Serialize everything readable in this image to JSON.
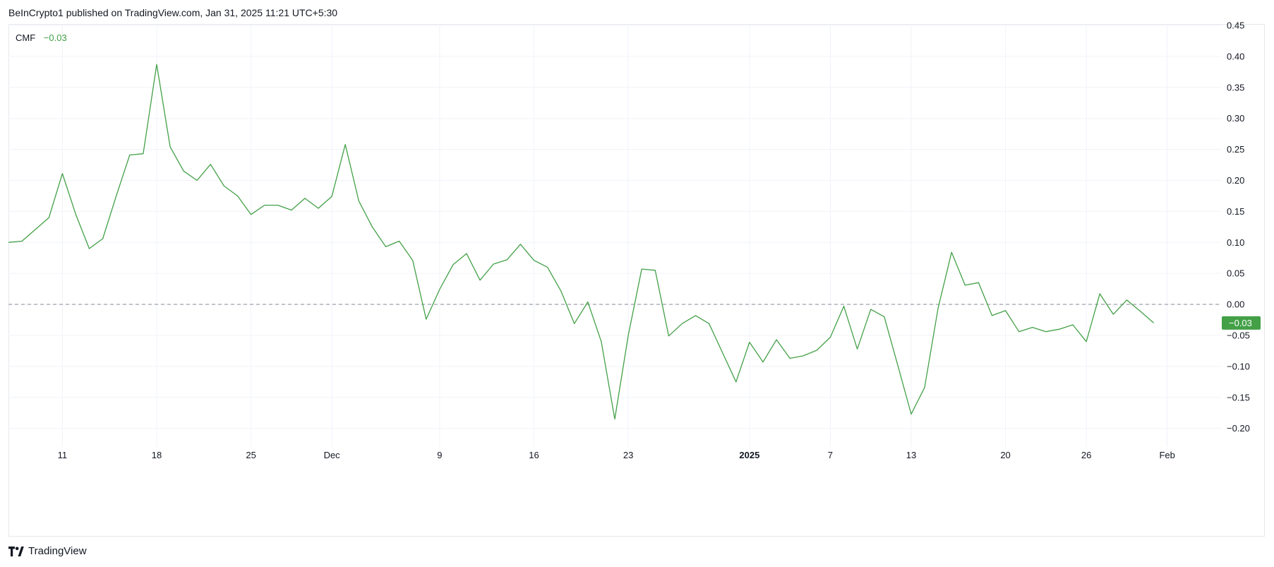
{
  "header": {
    "published_line": "BeInCrypto1 published on TradingView.com, Jan 31, 2025 11:21 UTC+5:30"
  },
  "legend": {
    "indicator_name": "CMF",
    "indicator_value": "−0.03"
  },
  "footer": {
    "logo_icon": "tradingview-logo-icon",
    "brand": "TradingView"
  },
  "colors": {
    "line": "#43a047",
    "badge": "#43a047",
    "grid": "#f0f3fa",
    "zero_line": "#9598a1",
    "axis_text": "#131722"
  },
  "chart_data": {
    "type": "line",
    "series": [
      {
        "name": "CMF",
        "x": [
          "2024-11-07",
          "2024-11-08",
          "2024-11-10",
          "2024-11-11",
          "2024-11-12",
          "2024-11-13",
          "2024-11-14",
          "2024-11-15",
          "2024-11-16",
          "2024-11-17",
          "2024-11-18",
          "2024-11-19",
          "2024-11-20",
          "2024-11-21",
          "2024-11-22",
          "2024-11-23",
          "2024-11-24",
          "2024-11-25",
          "2024-11-26",
          "2024-11-27",
          "2024-11-28",
          "2024-11-29",
          "2024-11-30",
          "2024-12-01",
          "2024-12-02",
          "2024-12-03",
          "2024-12-04",
          "2024-12-05",
          "2024-12-06",
          "2024-12-07",
          "2024-12-08",
          "2024-12-09",
          "2024-12-10",
          "2024-12-11",
          "2024-12-12",
          "2024-12-13",
          "2024-12-14",
          "2024-12-15",
          "2024-12-16",
          "2024-12-17",
          "2024-12-18",
          "2024-12-19",
          "2024-12-20",
          "2024-12-21",
          "2024-12-22",
          "2024-12-23",
          "2024-12-24",
          "2024-12-25",
          "2024-12-26",
          "2024-12-27",
          "2024-12-28",
          "2024-12-29",
          "2024-12-30",
          "2024-12-31",
          "2025-01-01",
          "2025-01-02",
          "2025-01-03",
          "2025-01-04",
          "2025-01-05",
          "2025-01-06",
          "2025-01-07",
          "2025-01-08",
          "2025-01-09",
          "2025-01-10",
          "2025-01-11",
          "2025-01-12",
          "2025-01-13",
          "2025-01-14",
          "2025-01-15",
          "2025-01-16",
          "2025-01-17",
          "2025-01-18",
          "2025-01-19",
          "2025-01-20",
          "2025-01-21",
          "2025-01-22",
          "2025-01-23",
          "2025-01-24",
          "2025-01-25",
          "2025-01-26",
          "2025-01-27",
          "2025-01-28",
          "2025-01-29",
          "2025-01-30",
          "2025-01-31"
        ],
        "values": [
          0.1,
          0.102,
          0.14,
          0.211,
          0.145,
          0.09,
          0.106,
          0.175,
          0.241,
          0.243,
          0.387,
          0.254,
          0.215,
          0.2,
          0.226,
          0.191,
          0.175,
          0.145,
          0.16,
          0.16,
          0.152,
          0.171,
          0.155,
          0.174,
          0.258,
          0.167,
          0.125,
          0.093,
          0.102,
          0.071,
          -0.024,
          0.024,
          0.064,
          0.082,
          0.039,
          0.065,
          0.072,
          0.097,
          0.071,
          0.06,
          0.022,
          -0.031,
          0.004,
          -0.06,
          -0.185,
          -0.05,
          0.057,
          0.055,
          -0.051,
          -0.031,
          -0.018,
          -0.031,
          -0.078,
          -0.125,
          -0.061,
          -0.093,
          -0.057,
          -0.087,
          -0.083,
          -0.074,
          -0.053,
          -0.003,
          -0.072,
          -0.008,
          -0.02,
          -0.098,
          -0.177,
          -0.134,
          -0.006,
          0.084,
          0.031,
          0.035,
          -0.018,
          -0.01,
          -0.044,
          -0.037,
          -0.044,
          -0.04,
          -0.033,
          -0.06,
          0.017,
          -0.016,
          0.007,
          -0.011,
          -0.03
        ]
      }
    ],
    "x_ticks": [
      {
        "x": "2024-11-11",
        "label": "11",
        "bold": false
      },
      {
        "x": "2024-11-18",
        "label": "18",
        "bold": false
      },
      {
        "x": "2024-11-25",
        "label": "25",
        "bold": false
      },
      {
        "x": "2024-12-01",
        "label": "Dec",
        "bold": false
      },
      {
        "x": "2024-12-09",
        "label": "9",
        "bold": false
      },
      {
        "x": "2024-12-16",
        "label": "16",
        "bold": false
      },
      {
        "x": "2024-12-23",
        "label": "23",
        "bold": false
      },
      {
        "x": "2025-01-01",
        "label": "2025",
        "bold": true
      },
      {
        "x": "2025-01-07",
        "label": "7",
        "bold": false
      },
      {
        "x": "2025-01-13",
        "label": "13",
        "bold": false
      },
      {
        "x": "2025-01-20",
        "label": "20",
        "bold": false
      },
      {
        "x": "2025-01-26",
        "label": "26",
        "bold": false
      },
      {
        "x": "2025-02-01",
        "label": "Feb",
        "bold": false
      }
    ],
    "y_ticks": [
      "0.45",
      "0.40",
      "0.35",
      "0.30",
      "0.25",
      "0.20",
      "0.15",
      "0.10",
      "0.05",
      "0.00",
      "−0.05",
      "−0.10",
      "−0.15",
      "−0.20"
    ],
    "xlim": [
      "2024-11-07",
      "2025-02-05"
    ],
    "ylim": [
      -0.23,
      0.45
    ],
    "zero_line": 0,
    "last_value_badge": "−0.03",
    "grid": true,
    "legend": "top-left"
  }
}
